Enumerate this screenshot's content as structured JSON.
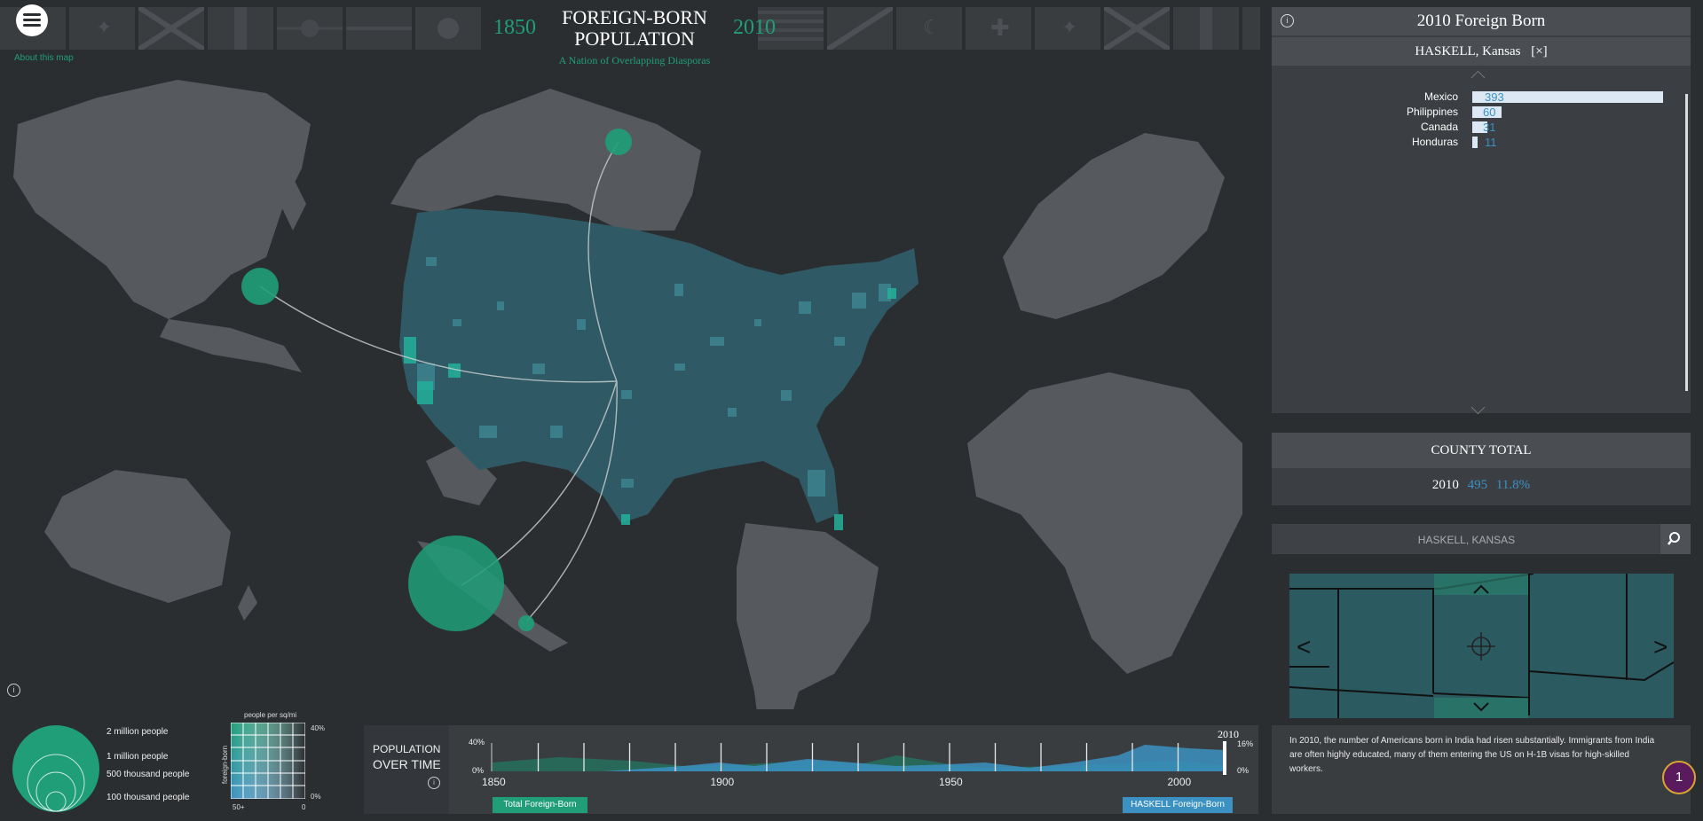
{
  "header": {
    "title_line1": "FOREIGN-BORN",
    "title_line2": "POPULATION",
    "subtitle": "A Nation of Overlapping Diasporas",
    "year_start": "1850",
    "year_end": "2010",
    "about_link": "About this map"
  },
  "flags": [
    "flag-1",
    "flag-2",
    "flag-3",
    "flag-4",
    "flag-5",
    "flag-6",
    "flag-7",
    "flag-8",
    "flag-9",
    "flag-10",
    "flag-11",
    "flag-12",
    "flag-13",
    "flag-14",
    "flag-15",
    "flag-16",
    "flag-17",
    "flag-18"
  ],
  "right_panel": {
    "title": "2010 Foreign Born",
    "county_name": "HASKELL, Kansas",
    "close_label": "[×]",
    "bars": [
      {
        "country": "Mexico",
        "value": 393
      },
      {
        "country": "Philippines",
        "value": 60
      },
      {
        "country": "Canada",
        "value": 31
      },
      {
        "country": "Honduras",
        "value": 11
      }
    ],
    "county_total_heading": "COUNTY TOTAL",
    "total_year": "2010",
    "total_count": "495",
    "total_pct": "11.8%",
    "search_value": "HASKELL, KANSAS",
    "nav_left": "<",
    "nav_right": ">",
    "nav_up": "^",
    "nav_down": "v",
    "description": "In 2010, the number of Americans born in India had risen substantially. Immigrants from India are often highly educated, many of them entering the US on H-1B visas for high-skilled workers.",
    "page_badge": "1"
  },
  "legend": {
    "circle_labels": [
      "2 million people",
      "1 million people",
      "500 thousand people",
      "100 thousand people"
    ],
    "grid_title": "people per sq/mi",
    "grid_y_label": "foreign-born",
    "grid_top_right": "40%",
    "grid_bottom_right": "0%",
    "grid_bottom_left": "50+",
    "grid_bottom_mid": "0"
  },
  "timeline": {
    "label_line1": "POPULATION",
    "label_line2": "OVER TIME",
    "y_top": "40%",
    "y_bottom": "0%",
    "y_right_top": "16%",
    "y_right_bottom": "0%",
    "current_year": "2010",
    "x_ticks": [
      "1850",
      "1900",
      "1950",
      "2000"
    ],
    "btn_total": "Total Foreign-Born",
    "btn_county": "HASKELL Foreign-Born"
  },
  "colors": {
    "accent_green": "#1f9e78",
    "accent_blue": "#3b91c2",
    "land": "#55595e",
    "bg": "#2b2e31"
  }
}
